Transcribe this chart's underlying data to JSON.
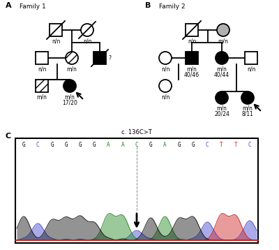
{
  "panel_A_label": "A",
  "panel_B_label": "B",
  "panel_C_label": "C",
  "family1_label": "Family 1",
  "family2_label": "Family 2",
  "mutation_label": "c. 136C>T",
  "dna_sequence": [
    "G",
    "C",
    "G",
    "G",
    "G",
    "G",
    "A",
    "A",
    "C",
    "G",
    "A",
    "G",
    "G",
    "C",
    "T",
    "T",
    "C"
  ],
  "dna_colors": [
    "black",
    "#4444cc",
    "black",
    "black",
    "black",
    "black",
    "#228822",
    "#228822",
    "#228822",
    "black",
    "#228822",
    "black",
    "black",
    "#4444cc",
    "#cc2222",
    "#cc2222",
    "#4444cc"
  ],
  "background_color": "#ffffff",
  "line_color": "black",
  "chrom_peak_colors": {
    "G": "#111111",
    "C": "#4444cc",
    "A": "#228822",
    "T": "#cc2222"
  }
}
